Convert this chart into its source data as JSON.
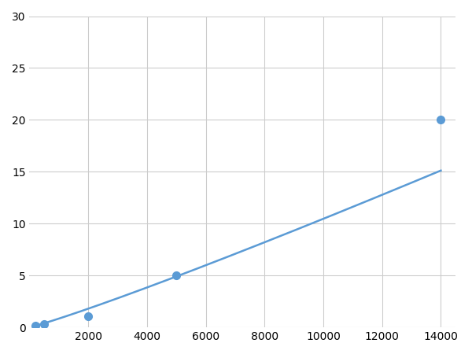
{
  "x_points": [
    200,
    500,
    2000,
    5000,
    14000
  ],
  "y_points": [
    0.2,
    0.35,
    1.1,
    5.0,
    20.0
  ],
  "line_color": "#5B9BD5",
  "marker_color": "#5B9BD5",
  "marker_size": 7,
  "line_width": 1.8,
  "xlim": [
    0,
    14500
  ],
  "ylim": [
    0,
    30
  ],
  "xticks": [
    2000,
    4000,
    6000,
    8000,
    10000,
    12000,
    14000
  ],
  "yticks": [
    0,
    5,
    10,
    15,
    20,
    25,
    30
  ],
  "grid_color": "#cccccc",
  "background_color": "#ffffff",
  "tick_labelsize": 10
}
